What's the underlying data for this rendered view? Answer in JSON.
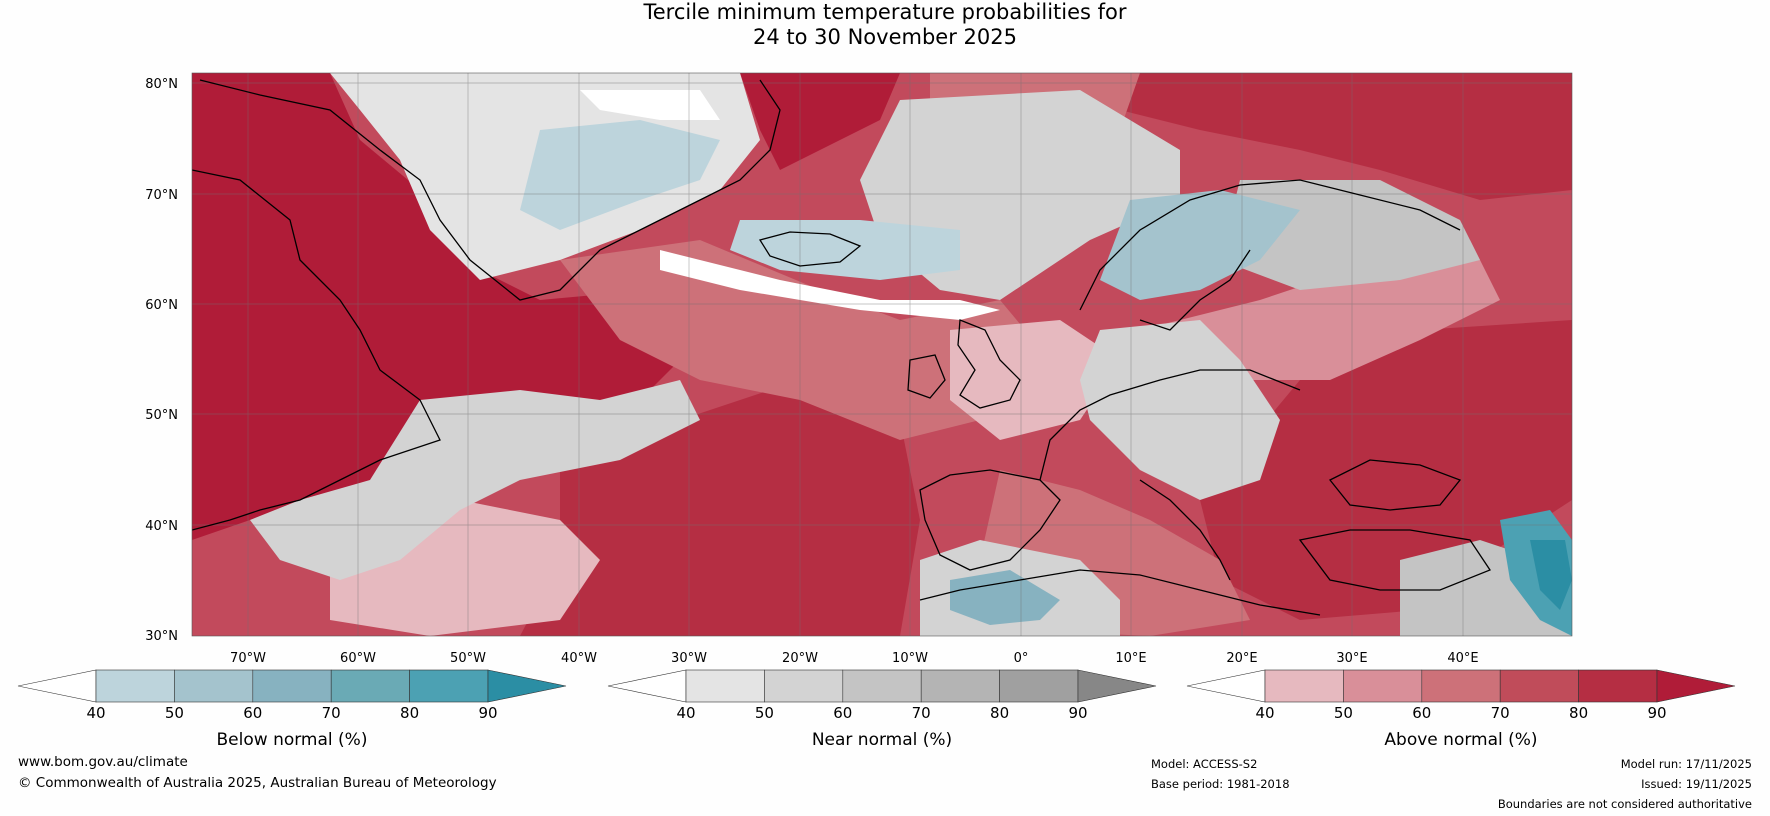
{
  "title": {
    "line1": "Tercile minimum temperature probabilities for",
    "line2": "24 to 30 November 2025"
  },
  "map": {
    "region": "North Atlantic and Europe",
    "lat_labels": [
      "80°N",
      "70°N",
      "60°N",
      "50°N",
      "40°N",
      "30°N"
    ],
    "lon_labels": [
      "70°W",
      "60°W",
      "50°W",
      "40°W",
      "30°W",
      "20°W",
      "10°W",
      "0°",
      "10°E",
      "20°E",
      "30°E",
      "40°E"
    ]
  },
  "legends": [
    {
      "id": "below",
      "title": "Below normal (%)",
      "ticks": [
        "40",
        "50",
        "60",
        "70",
        "80",
        "90"
      ],
      "colors": [
        "#ffffff",
        "#bdd4dc",
        "#a4c3cd",
        "#87b2c0",
        "#6aaab5",
        "#4ca1b3",
        "#2b8ea4"
      ]
    },
    {
      "id": "near",
      "title": "Near normal (%)",
      "ticks": [
        "40",
        "50",
        "60",
        "70",
        "80",
        "90"
      ],
      "colors": [
        "#ffffff",
        "#e4e4e4",
        "#d3d3d3",
        "#c4c4c4",
        "#b4b4b4",
        "#a0a0a0",
        "#878787"
      ]
    },
    {
      "id": "above",
      "title": "Above normal (%)",
      "ticks": [
        "40",
        "50",
        "60",
        "70",
        "80",
        "90"
      ],
      "colors": [
        "#ffffff",
        "#e6b9bf",
        "#d98f99",
        "#cd7179",
        "#c04c5a",
        "#b52e43",
        "#b01c38"
      ]
    }
  ],
  "footer": {
    "website": "www.bom.gov.au/climate",
    "copyright": "© Commonwealth of Australia 2025, Australian Bureau of Meteorology",
    "model": "Model: ACCESS-S2",
    "base_period": "Base period: 1981-2018",
    "model_run": "Model run: 17/11/2025",
    "issued": "Issued: 19/11/2025",
    "disclaimer": "Boundaries are not considered authoritative"
  }
}
